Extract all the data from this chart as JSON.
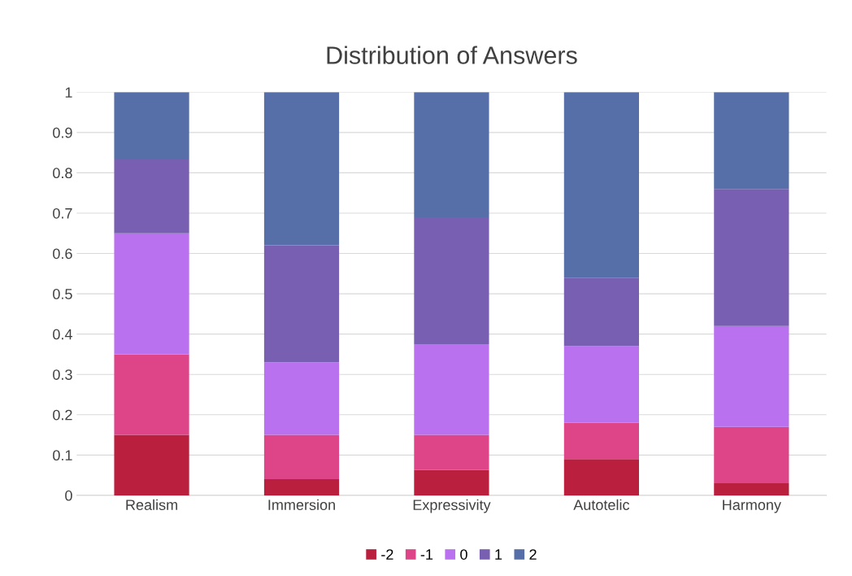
{
  "chart_data": {
    "type": "bar",
    "title": "Distribution of Answers",
    "stacked": true,
    "categories": [
      "Realism",
      "Immersion",
      "Expressivity",
      "Autotelic",
      "Harmony"
    ],
    "series": [
      {
        "name": "-2",
        "color": "#bb1f3e",
        "values": [
          0.15,
          0.04,
          0.063,
          0.09,
          0.03
        ]
      },
      {
        "name": "-1",
        "color": "#de4589",
        "values": [
          0.2,
          0.11,
          0.087,
          0.09,
          0.14
        ]
      },
      {
        "name": "0",
        "color": "#b971f0",
        "values": [
          0.3,
          0.18,
          0.225,
          0.19,
          0.25
        ]
      },
      {
        "name": "1",
        "color": "#795fb1",
        "values": [
          0.183,
          0.29,
          0.315,
          0.17,
          0.34
        ]
      },
      {
        "name": "2",
        "color": "#566fa8",
        "values": [
          0.167,
          0.38,
          0.31,
          0.46,
          0.24
        ]
      }
    ],
    "ylim": [
      0,
      1
    ],
    "yticks": [
      0,
      0.1,
      0.2,
      0.3,
      0.4,
      0.5,
      0.6,
      0.7,
      0.8,
      0.9,
      1
    ],
    "grid": "y",
    "legend": "bottom"
  }
}
